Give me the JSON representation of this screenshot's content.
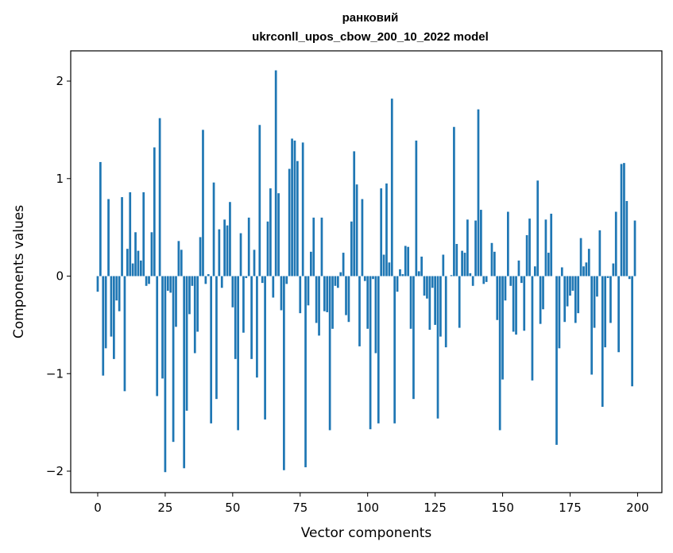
{
  "chart_data": {
    "type": "bar",
    "title": "ранковий",
    "subtitle": "ukrconll_upos_cbow_200_10_2022 model",
    "xlabel": "Vector components",
    "ylabel": "Components values",
    "xlim": [
      -10,
      209
    ],
    "ylim": [
      -2.22,
      2.31
    ],
    "x_ticks": [
      0,
      25,
      50,
      75,
      100,
      125,
      150,
      175,
      200
    ],
    "y_ticks": [
      -2,
      -1,
      0,
      1,
      2
    ],
    "grid": false,
    "bar_color": "#1f77b4",
    "x": [
      0,
      1,
      2,
      3,
      4,
      5,
      6,
      7,
      8,
      9,
      10,
      11,
      12,
      13,
      14,
      15,
      16,
      17,
      18,
      19,
      20,
      21,
      22,
      23,
      24,
      25,
      26,
      27,
      28,
      29,
      30,
      31,
      32,
      33,
      34,
      35,
      36,
      37,
      38,
      39,
      40,
      41,
      42,
      43,
      44,
      45,
      46,
      47,
      48,
      49,
      50,
      51,
      52,
      53,
      54,
      55,
      56,
      57,
      58,
      59,
      60,
      61,
      62,
      63,
      64,
      65,
      66,
      67,
      68,
      69,
      70,
      71,
      72,
      73,
      74,
      75,
      76,
      77,
      78,
      79,
      80,
      81,
      82,
      83,
      84,
      85,
      86,
      87,
      88,
      89,
      90,
      91,
      92,
      93,
      94,
      95,
      96,
      97,
      98,
      99,
      100,
      101,
      102,
      103,
      104,
      105,
      106,
      107,
      108,
      109,
      110,
      111,
      112,
      113,
      114,
      115,
      116,
      117,
      118,
      119,
      120,
      121,
      122,
      123,
      124,
      125,
      126,
      127,
      128,
      129,
      130,
      131,
      132,
      133,
      134,
      135,
      136,
      137,
      138,
      139,
      140,
      141,
      142,
      143,
      144,
      145,
      146,
      147,
      148,
      149,
      150,
      151,
      152,
      153,
      154,
      155,
      156,
      157,
      158,
      159,
      160,
      161,
      162,
      163,
      164,
      165,
      166,
      167,
      168,
      169,
      170,
      171,
      172,
      173,
      174,
      175,
      176,
      177,
      178,
      179,
      180,
      181,
      182,
      183,
      184,
      185,
      186,
      187,
      188,
      189,
      190,
      191,
      192,
      193,
      194,
      195,
      196,
      197,
      198,
      199
    ],
    "values": [
      -0.16,
      1.17,
      -1.02,
      -0.74,
      0.79,
      -0.62,
      -0.85,
      -0.25,
      -0.36,
      0.81,
      -1.18,
      0.28,
      0.86,
      0.13,
      0.45,
      0.26,
      0.16,
      0.86,
      -0.1,
      -0.08,
      0.45,
      1.32,
      -1.23,
      1.62,
      -1.05,
      -2.01,
      -0.15,
      -0.17,
      -1.7,
      -0.52,
      0.36,
      0.27,
      -1.97,
      -1.38,
      -0.39,
      -0.1,
      -0.79,
      -0.57,
      0.4,
      1.5,
      -0.08,
      0.02,
      -1.51,
      0.96,
      -1.26,
      0.48,
      -0.12,
      0.58,
      0.52,
      0.76,
      -0.32,
      -0.85,
      -1.58,
      0.44,
      -0.58,
      -0.02,
      0.6,
      -0.85,
      0.27,
      -1.04,
      1.55,
      -0.07,
      -1.47,
      0.56,
      0.9,
      -0.22,
      2.11,
      0.85,
      -0.35,
      -1.99,
      -0.08,
      1.1,
      1.41,
      1.39,
      1.18,
      -0.38,
      1.37,
      -1.96,
      -0.3,
      0.25,
      0.6,
      -0.48,
      -0.61,
      0.6,
      -0.36,
      -0.37,
      -1.58,
      -0.54,
      -0.1,
      -0.12,
      0.04,
      0.24,
      -0.4,
      -0.47,
      0.56,
      1.28,
      0.94,
      -0.72,
      0.79,
      -0.05,
      -0.54,
      -1.57,
      -0.03,
      -0.79,
      -1.51,
      0.9,
      0.22,
      0.95,
      0.14,
      1.82,
      -1.51,
      -0.16,
      0.07,
      0.02,
      0.31,
      0.3,
      -0.54,
      -1.26,
      1.39,
      0.05,
      0.2,
      -0.2,
      -0.23,
      -0.55,
      -0.12,
      -0.5,
      -1.46,
      -0.62,
      0.22,
      -0.73,
      0.0,
      0.01,
      1.53,
      0.33,
      -0.53,
      0.26,
      0.24,
      0.58,
      0.03,
      -0.1,
      0.57,
      1.71,
      0.68,
      -0.08,
      -0.06,
      0.0,
      0.34,
      0.25,
      -0.45,
      -1.58,
      -1.06,
      -0.25,
      0.66,
      -0.1,
      -0.57,
      -0.6,
      0.16,
      -0.07,
      -0.56,
      0.42,
      0.59,
      -1.07,
      0.1,
      0.98,
      -0.49,
      -0.34,
      0.58,
      0.24,
      0.64,
      0.0,
      -1.73,
      -0.74,
      0.09,
      -0.47,
      -0.31,
      -0.2,
      -0.15,
      -0.48,
      -0.38,
      0.39,
      0.1,
      0.14,
      0.28,
      -1.01,
      -0.53,
      -0.21,
      0.47,
      -1.34,
      -0.73,
      -0.02,
      -0.48,
      0.13,
      0.66,
      -0.78,
      1.15,
      1.16,
      0.77,
      -0.03,
      -1.13,
      0.57
    ]
  }
}
